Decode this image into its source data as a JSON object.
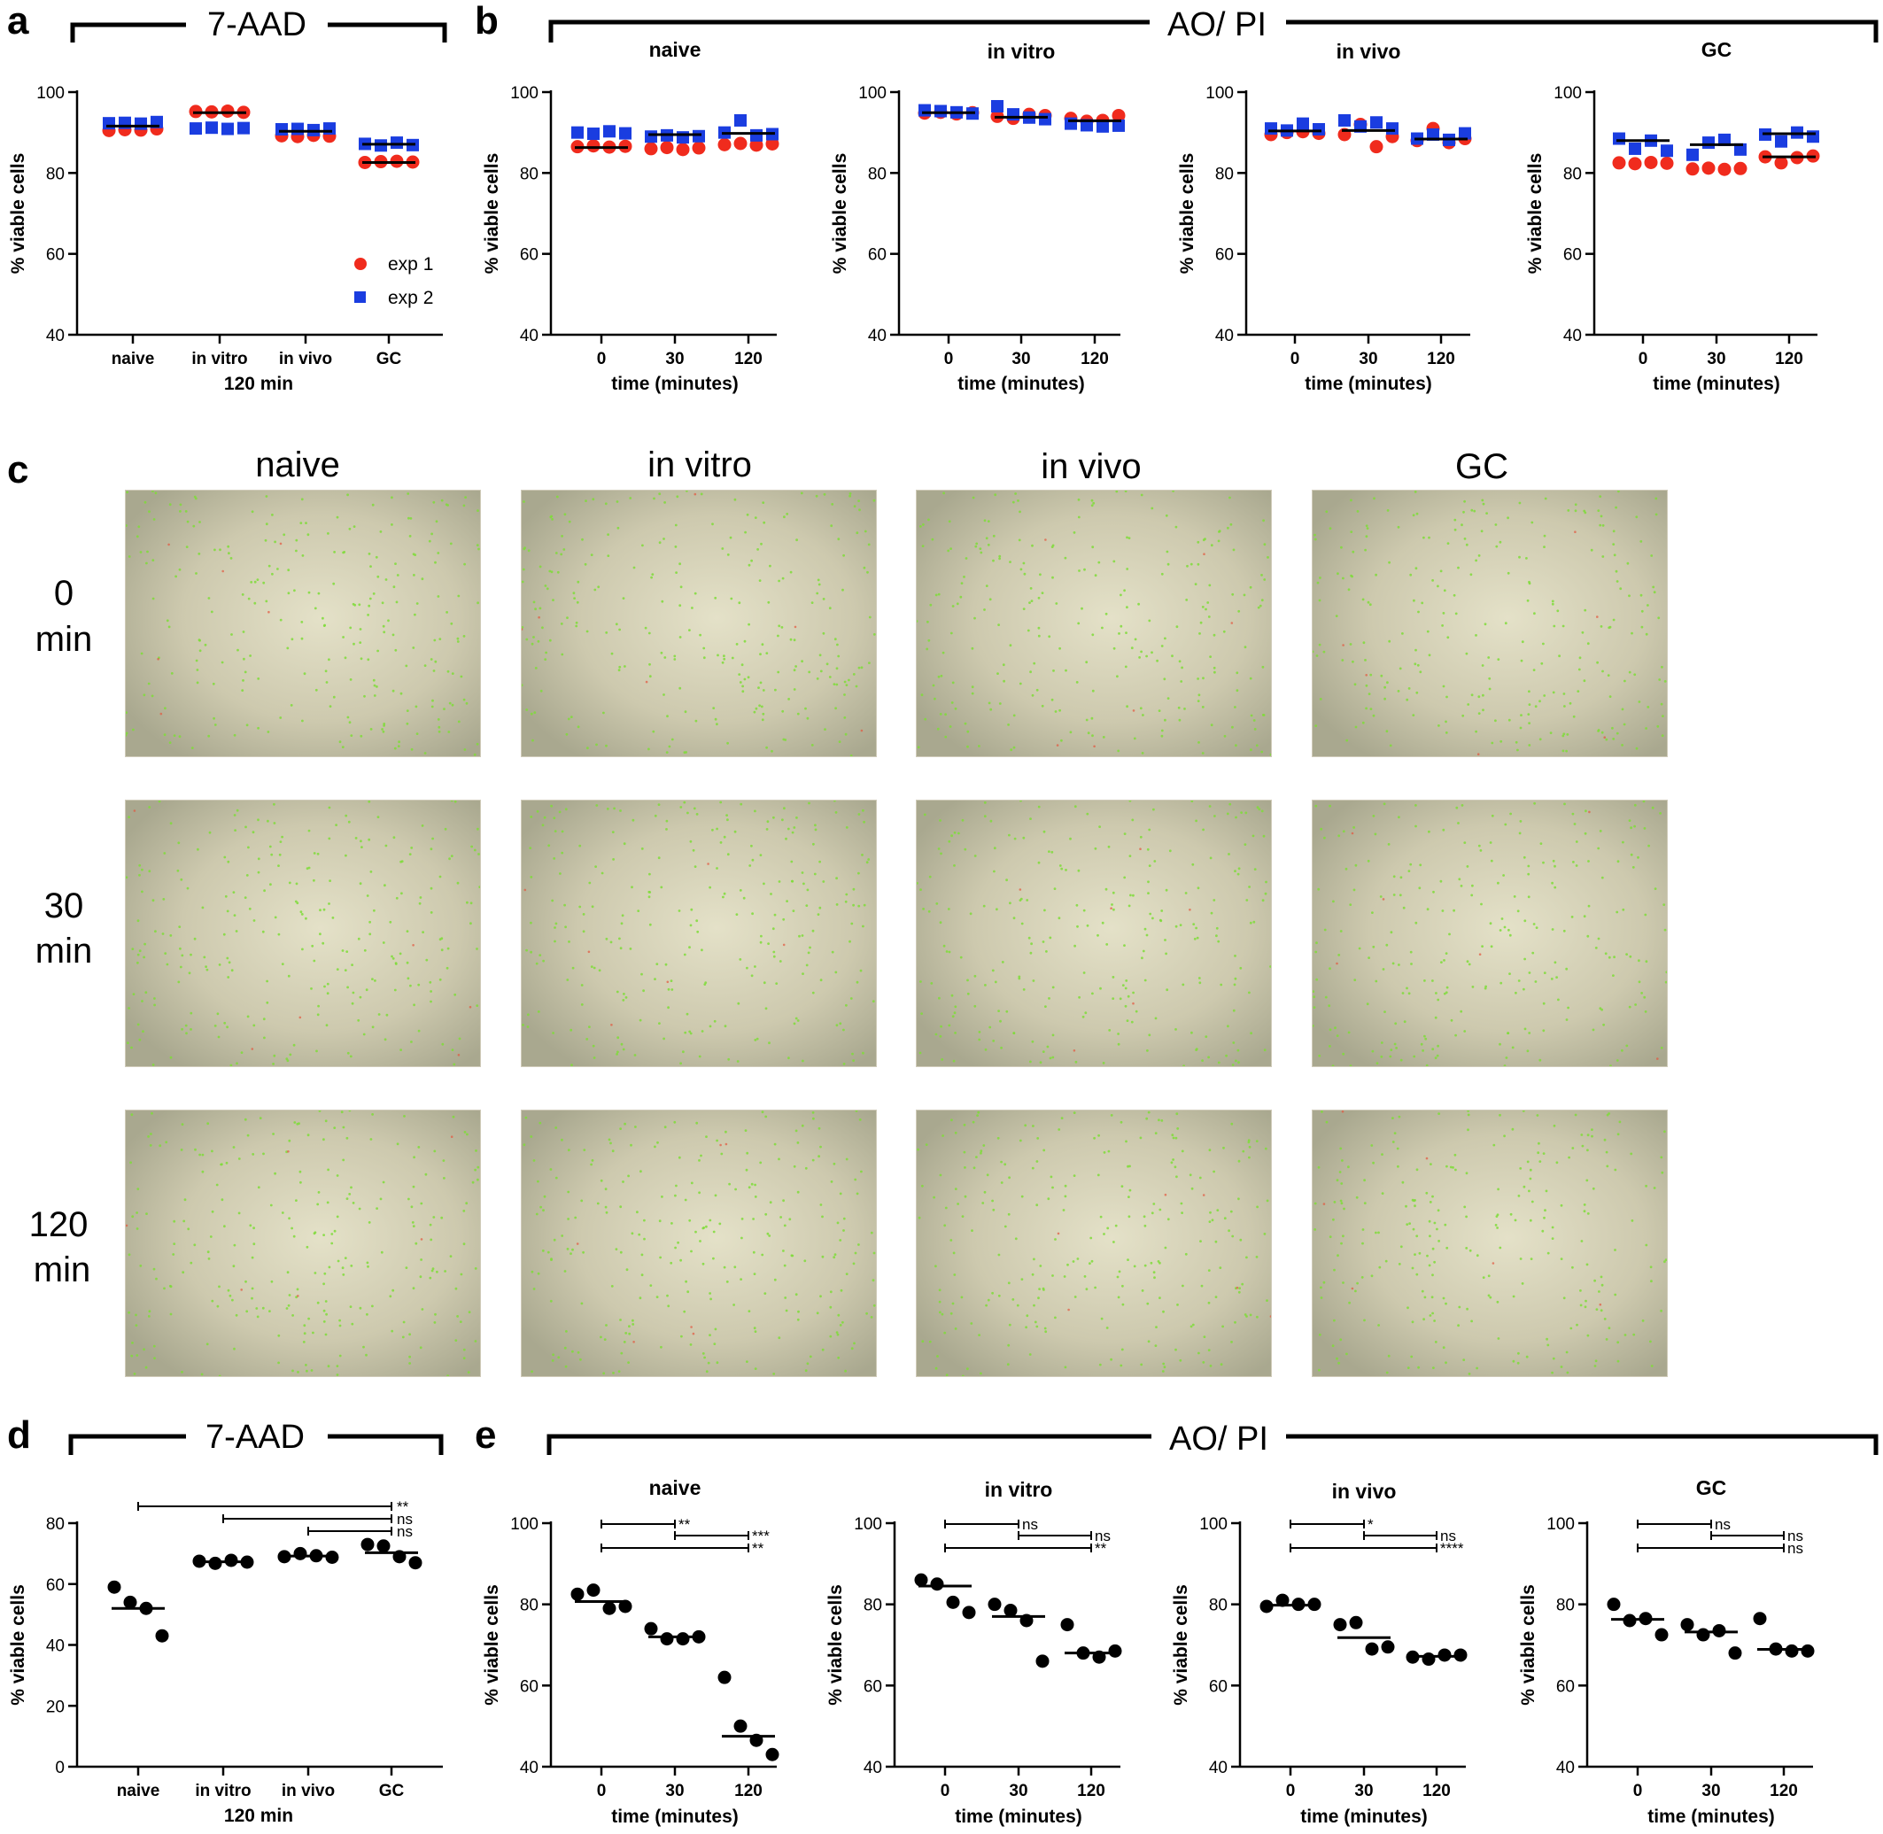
{
  "panel_letters": {
    "a": "a",
    "b": "b",
    "c": "c",
    "d": "d",
    "e": "e"
  },
  "brackets": {
    "top_left": "7-AAD",
    "top_right": "AO/ PI",
    "bottom_left": "7-AAD",
    "bottom_right": "AO/ PI"
  },
  "legend": {
    "exp1": "exp 1",
    "exp2": "exp 2"
  },
  "colors": {
    "exp1": "#f02b1d",
    "exp2": "#1a3de0",
    "median": "#000000",
    "dot": "#000000"
  },
  "images": {
    "columns": [
      "naive",
      "in vitro",
      "in vivo",
      "GC"
    ],
    "rows": [
      {
        "line1": "0",
        "line2": "min"
      },
      {
        "line1": "30",
        "line2": "min"
      },
      {
        "line1": "120",
        "line2": "min"
      }
    ]
  },
  "chart_data": [
    {
      "id": "a",
      "type": "scatter",
      "title": "",
      "xlabel": "120 min",
      "ylabel": "% viable cells",
      "categories": [
        "naive",
        "in vitro",
        "in vivo",
        "GC"
      ],
      "ylim": [
        40,
        100
      ],
      "yticks": [
        40,
        60,
        80,
        100
      ],
      "series": [
        {
          "name": "exp 1",
          "color": "#f02b1d",
          "values": [
            [
              90.5,
              90.7,
              90.6,
              90.9
            ],
            [
              95.2,
              95.1,
              95.3,
              95.0
            ],
            [
              89.2,
              89.0,
              89.3,
              89.1
            ],
            [
              82.6,
              82.8,
              82.9,
              82.7
            ]
          ]
        },
        {
          "name": "exp 2",
          "color": "#1a3de0",
          "values": [
            [
              92.3,
              92.4,
              92.2,
              92.6
            ],
            [
              91.0,
              91.2,
              90.9,
              91.1
            ],
            [
              90.8,
              90.9,
              90.6,
              91.0
            ],
            [
              87.2,
              86.8,
              87.5,
              86.9
            ]
          ]
        }
      ],
      "medians": [
        91.6,
        94.9,
        90.3,
        87.1
      ],
      "lower_lines": [
        null,
        null,
        null,
        82.6
      ]
    },
    {
      "id": "b1",
      "type": "scatter",
      "title": "naive",
      "xlabel": "time (minutes)",
      "ylabel": "% viable cells",
      "categories": [
        "0",
        "30",
        "120"
      ],
      "ylim": [
        40,
        100
      ],
      "yticks": [
        40,
        60,
        80,
        100
      ],
      "series": [
        {
          "name": "exp 1",
          "color": "#f02b1d",
          "values": [
            [
              86.5,
              86.7,
              86.4,
              86.6
            ],
            [
              86.0,
              86.3,
              85.8,
              86.2
            ],
            [
              87.0,
              87.3,
              86.9,
              87.2
            ]
          ]
        },
        {
          "name": "exp 2",
          "color": "#1a3de0",
          "values": [
            [
              90.0,
              89.7,
              90.3,
              89.8
            ],
            [
              89.0,
              89.3,
              88.8,
              89.1
            ],
            [
              90.0,
              93.0,
              89.3,
              89.6
            ]
          ]
        }
      ],
      "medians": [
        86.3,
        89.5,
        89.8
      ]
    },
    {
      "id": "b2",
      "type": "scatter",
      "title": "in vitro",
      "xlabel": "time (minutes)",
      "ylabel": "% viable cells",
      "categories": [
        "0",
        "30",
        "120"
      ],
      "ylim": [
        40,
        100
      ],
      "yticks": [
        40,
        60,
        80,
        100
      ],
      "series": [
        {
          "name": "exp 1",
          "color": "#f02b1d",
          "values": [
            [
              94.8,
              95.0,
              94.6,
              94.9
            ],
            [
              94.0,
              93.5,
              94.5,
              94.2
            ],
            [
              93.5,
              92.8,
              93.0,
              94.2
            ]
          ]
        },
        {
          "name": "exp 2",
          "color": "#1a3de0",
          "values": [
            [
              95.5,
              95.3,
              95.0,
              94.7
            ],
            [
              96.5,
              94.5,
              93.7,
              93.3
            ],
            [
              92.2,
              91.8,
              91.5,
              91.7
            ]
          ]
        }
      ],
      "medians": [
        94.9,
        93.8,
        92.9
      ]
    },
    {
      "id": "b3",
      "type": "scatter",
      "title": "in vivo",
      "xlabel": "time (minutes)",
      "ylabel": "% viable cells",
      "categories": [
        "0",
        "30",
        "120"
      ],
      "ylim": [
        40,
        100
      ],
      "yticks": [
        40,
        60,
        80,
        100
      ],
      "series": [
        {
          "name": "exp 1",
          "color": "#f02b1d",
          "values": [
            [
              89.5,
              90.0,
              90.2,
              89.8
            ],
            [
              89.5,
              92.0,
              86.5,
              89.0
            ],
            [
              88.0,
              91.0,
              87.5,
              88.5
            ]
          ]
        },
        {
          "name": "exp 2",
          "color": "#1a3de0",
          "values": [
            [
              91.0,
              90.5,
              92.2,
              90.8
            ],
            [
              93.0,
              91.5,
              92.5,
              91.0
            ],
            [
              88.5,
              89.5,
              88.2,
              89.8
            ]
          ]
        }
      ],
      "medians": [
        90.4,
        90.5,
        88.4
      ]
    },
    {
      "id": "b4",
      "type": "scatter",
      "title": "GC",
      "xlabel": "time (minutes)",
      "ylabel": "% viable cells",
      "categories": [
        "0",
        "30",
        "120"
      ],
      "ylim": [
        40,
        100
      ],
      "yticks": [
        40,
        60,
        80,
        100
      ],
      "series": [
        {
          "name": "exp 1",
          "color": "#f02b1d",
          "values": [
            [
              82.5,
              82.3,
              82.6,
              82.4
            ],
            [
              81.0,
              81.2,
              80.9,
              81.1
            ],
            [
              84.0,
              82.5,
              83.8,
              84.2
            ]
          ]
        },
        {
          "name": "exp 2",
          "color": "#1a3de0",
          "values": [
            [
              88.5,
              86.0,
              88.0,
              85.5
            ],
            [
              84.5,
              87.5,
              88.2,
              85.8
            ],
            [
              89.5,
              87.8,
              90.0,
              89.0
            ]
          ]
        }
      ],
      "medians": [
        88.0,
        87.0,
        89.7
      ],
      "lower_lines": [
        null,
        null,
        84.0
      ]
    },
    {
      "id": "d",
      "type": "scatter",
      "title": "",
      "xlabel": "120 min",
      "ylabel": "% viable cells",
      "categories": [
        "naive",
        "in vitro",
        "in vivo",
        "GC"
      ],
      "ylim": [
        0,
        85
      ],
      "yticks": [
        0,
        20,
        40,
        60,
        80
      ],
      "series": [
        {
          "name": "",
          "color": "#000000",
          "values": [
            [
              59,
              54,
              52,
              43
            ],
            [
              67.5,
              66.8,
              67.8,
              67.2
            ],
            [
              69,
              70,
              69.3,
              68.8
            ],
            [
              73,
              72.5,
              69,
              67
            ]
          ]
        }
      ],
      "medians": [
        52,
        67.3,
        69.2,
        70.3
      ],
      "significance": [
        {
          "from": 0,
          "to": 3,
          "label": "**"
        },
        {
          "from": 1,
          "to": 3,
          "label": "ns"
        },
        {
          "from": 2,
          "to": 3,
          "label": "ns"
        }
      ]
    },
    {
      "id": "e1",
      "type": "scatter",
      "title": "naive",
      "xlabel": "time (minutes)",
      "ylabel": "% viable cells",
      "categories": [
        "0",
        "30",
        "120"
      ],
      "ylim": [
        40,
        100
      ],
      "yticks": [
        40,
        60,
        80,
        100
      ],
      "series": [
        {
          "name": "",
          "color": "#000000",
          "values": [
            [
              82.5,
              83.5,
              79,
              79.5
            ],
            [
              74,
              71.5,
              71.5,
              72
            ],
            [
              62,
              50,
              46.5,
              43
            ]
          ]
        }
      ],
      "medians": [
        80.7,
        72,
        47.5
      ],
      "significance": [
        {
          "from": 0,
          "to": 1,
          "label": "**"
        },
        {
          "from": 1,
          "to": 2,
          "label": "***"
        },
        {
          "from": 0,
          "to": 2,
          "label": "**"
        }
      ]
    },
    {
      "id": "e2",
      "type": "scatter",
      "title": "in vitro",
      "xlabel": "time (minutes)",
      "ylabel": "% viable cells",
      "categories": [
        "0",
        "30",
        "120"
      ],
      "ylim": [
        40,
        100
      ],
      "yticks": [
        40,
        60,
        80,
        100
      ],
      "series": [
        {
          "name": "",
          "color": "#000000",
          "values": [
            [
              86,
              85,
              80.5,
              78
            ],
            [
              80,
              78.5,
              76,
              66
            ],
            [
              75,
              68,
              67,
              68.5
            ]
          ]
        }
      ],
      "medians": [
        84.5,
        77,
        68
      ],
      "significance": [
        {
          "from": 0,
          "to": 1,
          "label": "ns"
        },
        {
          "from": 1,
          "to": 2,
          "label": "ns"
        },
        {
          "from": 0,
          "to": 2,
          "label": "**"
        }
      ]
    },
    {
      "id": "e3",
      "type": "scatter",
      "title": "in vivo",
      "xlabel": "time (minutes)",
      "ylabel": "% viable cells",
      "categories": [
        "0",
        "30",
        "120"
      ],
      "ylim": [
        40,
        100
      ],
      "yticks": [
        40,
        60,
        80,
        100
      ],
      "series": [
        {
          "name": "",
          "color": "#000000",
          "values": [
            [
              79.5,
              81,
              80,
              80
            ],
            [
              75,
              75.5,
              69,
              69.5
            ],
            [
              67,
              66.5,
              67.5,
              67.5
            ]
          ]
        }
      ],
      "medians": [
        79.8,
        71.8,
        67.2
      ],
      "significance": [
        {
          "from": 0,
          "to": 1,
          "label": "*"
        },
        {
          "from": 1,
          "to": 2,
          "label": "ns"
        },
        {
          "from": 0,
          "to": 2,
          "label": "****"
        }
      ]
    },
    {
      "id": "e4",
      "type": "scatter",
      "title": "GC",
      "xlabel": "time (minutes)",
      "ylabel": "% viable cells",
      "categories": [
        "0",
        "30",
        "120"
      ],
      "ylim": [
        40,
        100
      ],
      "yticks": [
        40,
        60,
        80,
        100
      ],
      "series": [
        {
          "name": "",
          "color": "#000000",
          "values": [
            [
              80,
              76,
              76.5,
              72.5
            ],
            [
              75,
              72.5,
              73.5,
              68
            ],
            [
              76.5,
              69,
              68.5,
              68.5
            ]
          ]
        }
      ],
      "medians": [
        76.3,
        73.2,
        68.9
      ],
      "significance": [
        {
          "from": 0,
          "to": 1,
          "label": "ns"
        },
        {
          "from": 1,
          "to": 2,
          "label": "ns"
        },
        {
          "from": 0,
          "to": 2,
          "label": "ns"
        }
      ]
    }
  ]
}
